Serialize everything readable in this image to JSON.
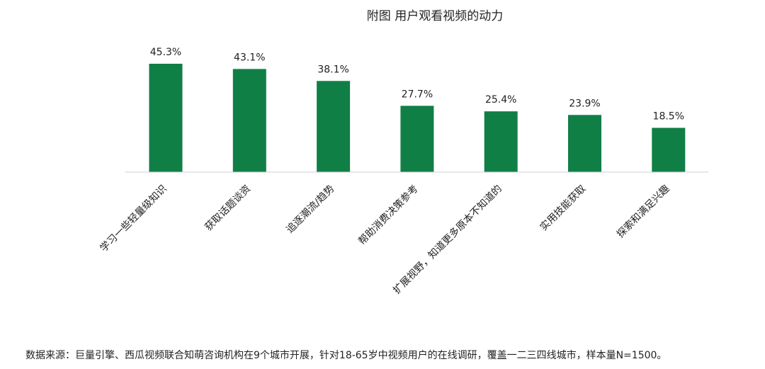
{
  "chart_data": {
    "type": "bar",
    "title": "附图 用户观看视频的动力",
    "categories": [
      "学习一些轻量级知识",
      "获取话题谈资",
      "追逐潮流/趋势",
      "帮助消费决策参考",
      "扩展视野，知道更多原本不知道的",
      "实用技能获取",
      "探索和满足兴趣"
    ],
    "values": [
      45.3,
      43.1,
      38.1,
      27.7,
      25.4,
      23.9,
      18.5
    ],
    "value_labels": [
      "45.3%",
      "43.1%",
      "38.1%",
      "27.7%",
      "25.4%",
      "23.9%",
      "18.5%"
    ],
    "unit": "%",
    "ylim": [
      0,
      45.3
    ],
    "bar_color": "#107f46",
    "axis_color": "#d0d0d0",
    "grid": false,
    "legend": "none"
  },
  "footer": {
    "source": "数据来源：巨量引擎、西瓜视频联合知萌咨询机构在9个城市开展，针对18-65岁中视频用户的在线调研，覆盖一二三四线城市，样本量N=1500。"
  }
}
